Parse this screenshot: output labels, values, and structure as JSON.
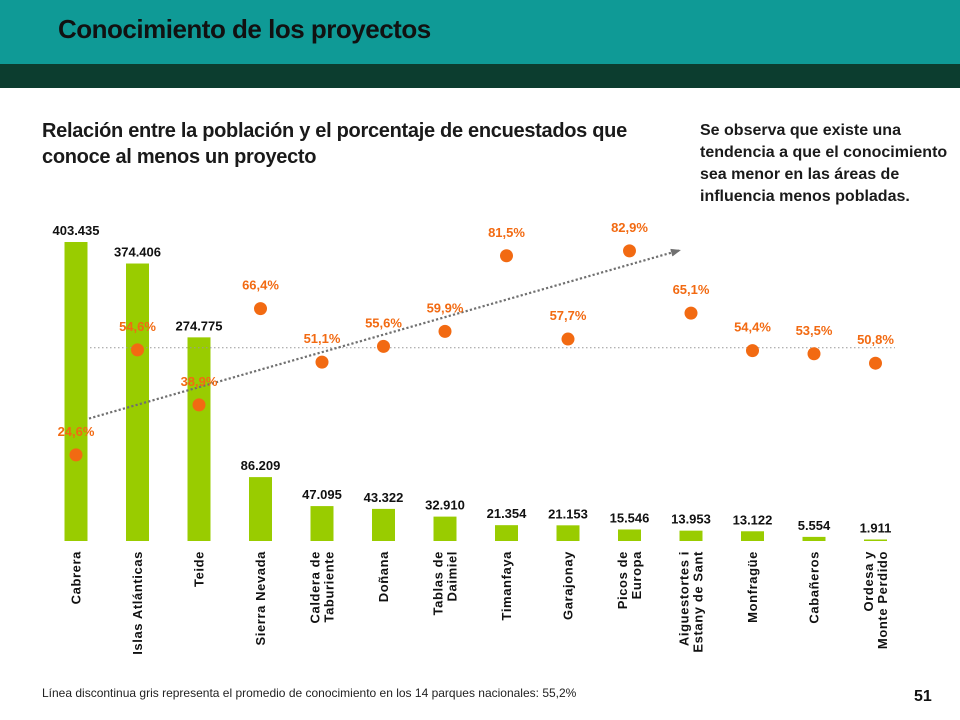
{
  "header": {
    "title": "Conocimiento de los proyectos"
  },
  "chart_title": "Relación entre la población y el porcentaje de encuestados que conoce al menos un proyecto",
  "note": "Se observa que existe una tendencia a que el conocimiento sea menor en las áreas de influencia menos pobladas.",
  "footnote": "Línea discontinua gris representa el promedio de conocimiento en los 14 parques nacionales: 55,2%",
  "page_number": "51",
  "colors": {
    "header_teal": "#0f9a96",
    "header_dark": "#0c3d2f",
    "bar": "#99cc00",
    "point": "#f26a12",
    "reference_line": "#999999",
    "trend_line": "#707070"
  },
  "chart_data": {
    "type": "bar",
    "categories": [
      [
        "Cabrera"
      ],
      [
        "Islas Atlánticas"
      ],
      [
        "Teide"
      ],
      [
        "Sierra Nevada"
      ],
      [
        "Caldera de",
        "Taburiente"
      ],
      [
        "Doñana"
      ],
      [
        "Tablas de",
        "Daimiel"
      ],
      [
        "Timanfaya"
      ],
      [
        "Garajonay"
      ],
      [
        "Picos de",
        "Europa"
      ],
      [
        "Aiguestortes i",
        "Estany de Sant"
      ],
      [
        "Monfragüe"
      ],
      [
        "Cabañeros"
      ],
      [
        "Ordesa y",
        "Monte Perdido"
      ]
    ],
    "series": [
      {
        "type": "bar",
        "values": [
          403435,
          374406,
          274775,
          86209,
          47095,
          43322,
          32910,
          21354,
          21153,
          15546,
          13953,
          13122,
          5554,
          1911
        ],
        "labels": [
          "403.435",
          "374.406",
          "274.775",
          "86.209",
          "47.095",
          "43.322",
          "32.910",
          "21.354",
          "21.153",
          "15.546",
          "13.953",
          "13.122",
          "5.554",
          "1.911"
        ]
      },
      {
        "type": "scatter",
        "values": [
          24.6,
          54.6,
          38.9,
          66.4,
          51.1,
          55.6,
          59.9,
          81.5,
          57.7,
          82.9,
          65.1,
          54.4,
          53.5,
          50.8
        ],
        "labels": [
          "24,6%",
          "54,6%",
          "38,9%",
          "66,4%",
          "51,1%",
          "55,6%",
          "59,9%",
          "81,5%",
          "57,7%",
          "82,9%",
          "65,1%",
          "54,4%",
          "53,5%",
          "50,8%"
        ]
      }
    ],
    "reference_line": {
      "value": 55.2
    },
    "trend_line": {
      "from_category": 0,
      "from_value": 35.0,
      "to_category": 10,
      "to_value": 83.0
    },
    "bar_ylim": [
      0,
      403435
    ],
    "pct_ylim": [
      0,
      100
    ],
    "legend": "none",
    "grid": false
  }
}
